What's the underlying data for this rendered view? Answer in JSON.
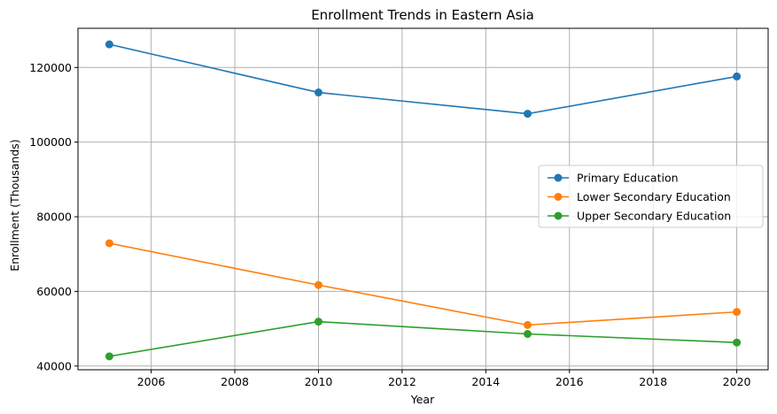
{
  "chart_data": {
    "type": "line",
    "title": "Enrollment Trends in Eastern Asia",
    "xlabel": "Year",
    "ylabel": "Enrollment (Thousands)",
    "x": [
      2005,
      2010,
      2015,
      2020
    ],
    "xlim": [
      2004.25,
      2020.75
    ],
    "ylim": [
      39000,
      130500
    ],
    "xticks": [
      2006,
      2008,
      2010,
      2012,
      2014,
      2016,
      2018,
      2020
    ],
    "yticks": [
      40000,
      60000,
      80000,
      100000,
      120000
    ],
    "grid": true,
    "legend_position": "center-right",
    "series": [
      {
        "name": "Primary Education",
        "color": "#1f77b4",
        "values": [
          126200,
          113300,
          107600,
          117600
        ]
      },
      {
        "name": "Lower Secondary Education",
        "color": "#ff7f0e",
        "values": [
          72900,
          61700,
          51000,
          54500
        ]
      },
      {
        "name": "Upper Secondary Education",
        "color": "#2ca02c",
        "values": [
          42600,
          51900,
          48600,
          46300
        ]
      }
    ]
  }
}
